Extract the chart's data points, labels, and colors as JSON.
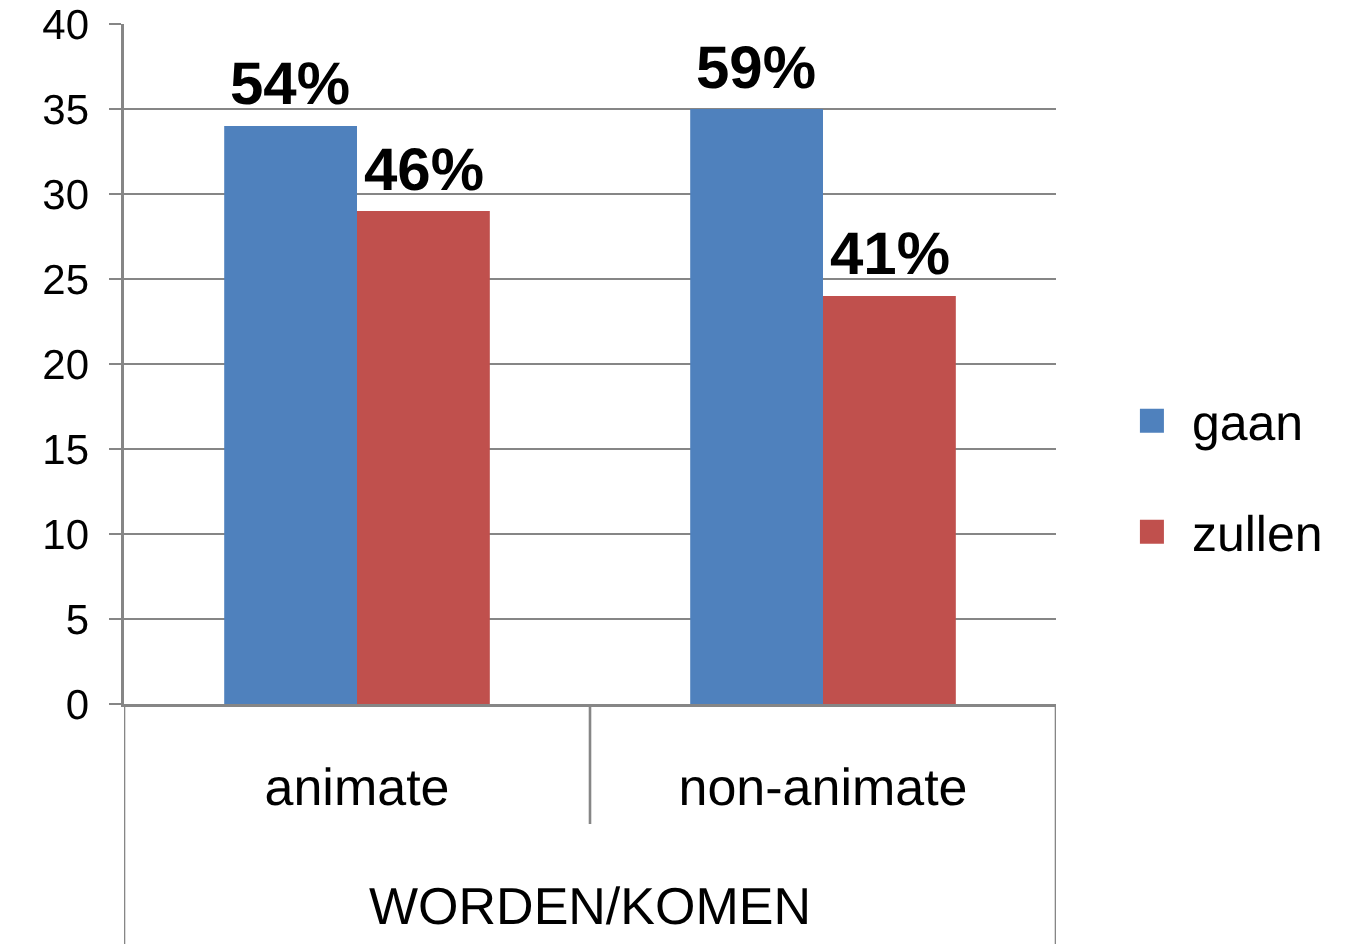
{
  "chart_data": {
    "type": "bar",
    "xlabel": "WORDEN/KOMEN",
    "categories": [
      "animate",
      "non-animate"
    ],
    "series": [
      {
        "name": "gaan",
        "color": "#4f81bd",
        "values": [
          34,
          35
        ]
      },
      {
        "name": "zullen",
        "color": "#c0504d",
        "values": [
          29,
          24
        ]
      }
    ],
    "annotations": [
      {
        "text": "54%",
        "x": "animate",
        "y": 34
      },
      {
        "text": "46%",
        "x": "animate",
        "y": 29
      },
      {
        "text": "59%",
        "x": "non-animate",
        "y": 35
      },
      {
        "text": "41%",
        "x": "non-animate",
        "y": 24
      }
    ],
    "ylim": [
      0,
      40
    ],
    "yticks": [
      0,
      5,
      10,
      15,
      20,
      25,
      30,
      35,
      40
    ],
    "grid": true,
    "legend": "right"
  }
}
